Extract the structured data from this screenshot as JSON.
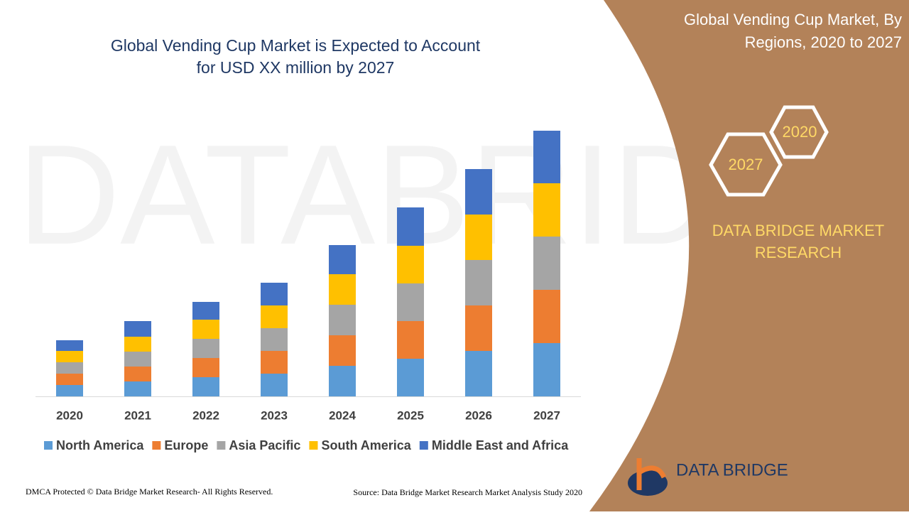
{
  "chart_data": {
    "type": "stacked-bar",
    "title": [
      "Global Vending Cup Market is Expected to Account",
      "for USD XX million by 2027"
    ],
    "categories": [
      "2020",
      "2021",
      "2022",
      "2023",
      "2024",
      "2025",
      "2026",
      "2027"
    ],
    "series": [
      {
        "name": "North America",
        "color": "#5b9bd5",
        "values": [
          16,
          21,
          27,
          32,
          43,
          53,
          64,
          75
        ]
      },
      {
        "name": "Europe",
        "color": "#ed7d31",
        "values": [
          16,
          21,
          27,
          32,
          43,
          53,
          64,
          75
        ]
      },
      {
        "name": "Asia Pacific",
        "color": "#a5a5a5",
        "values": [
          16,
          21,
          27,
          32,
          43,
          53,
          64,
          75
        ]
      },
      {
        "name": "South America",
        "color": "#ffc000",
        "values": [
          16,
          21,
          27,
          32,
          43,
          53,
          64,
          75
        ]
      },
      {
        "name": "Middle East and Africa",
        "color": "#4472c4",
        "values": [
          15,
          22,
          25,
          32,
          41,
          54,
          64,
          74
        ]
      }
    ],
    "ylim": [
      0,
      400
    ],
    "legend": "bottom"
  },
  "panel": {
    "title": [
      "Global Vending Cup Market, By",
      "Regions, 2020 to 2027"
    ],
    "hex_top": "2020",
    "hex_bottom": "2027",
    "brand": [
      "DATA BRIDGE MARKET",
      "RESEARCH"
    ],
    "logo": "DATA BRIDGE"
  },
  "footer": {
    "left": "DMCA Protected © Data Bridge Market Research- All Rights Reserved.",
    "right": "Source: Data Bridge Market Research Market Analysis Study 2020"
  }
}
